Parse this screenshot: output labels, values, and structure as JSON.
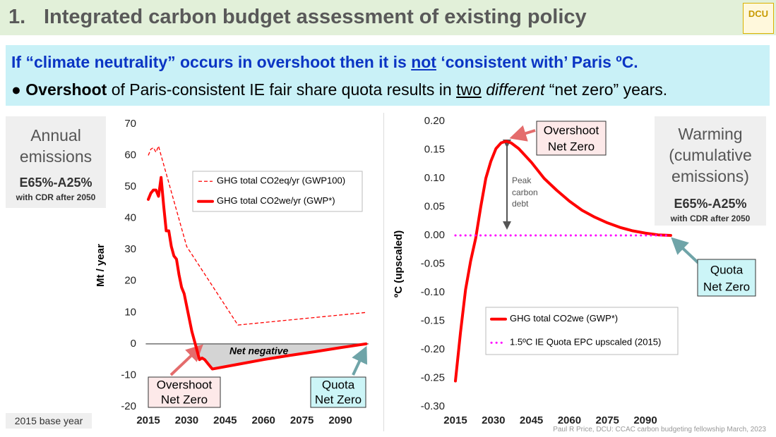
{
  "header": {
    "number": "1.",
    "title": "Integrated carbon budget assessment of existing policy",
    "logo": "DCU"
  },
  "banner": {
    "line1": [
      "If “climate neutrality” occurs in overshoot then it is ",
      "not",
      " ‘consistent with’ Paris ºC."
    ],
    "line2": [
      "● ",
      "Overshoot",
      " of Paris-consistent IE fair share quota results in ",
      "two",
      " different",
      " “net zero” years."
    ]
  },
  "left_box": {
    "title": "Annual emissions",
    "scenario": "E65%-A25%",
    "note": "with CDR after 2050"
  },
  "right_box": {
    "title": "Warming (cumulative emissions)",
    "scenario": "E65%-A25%",
    "note": "with CDR after 2050"
  },
  "footer": {
    "base_year": "2015 base year",
    "credit": "Paul R Price, DCU: CCAC carbon budgeting fellowship March, 2023"
  },
  "chart_data": [
    {
      "type": "line",
      "ylabel": "Mt / year",
      "xlim": [
        2014,
        2101
      ],
      "xticks": [
        2015,
        2030,
        2045,
        2060,
        2075,
        2090
      ],
      "ylim": [
        -20,
        70
      ],
      "yticks": [
        -20,
        -10,
        0,
        10,
        20,
        30,
        40,
        50,
        60,
        70
      ],
      "zero_line": true,
      "legend": "upper right",
      "series": [
        {
          "name": "GHG total CO2eq/yr (GWP100)",
          "color": "#ff0000",
          "line_style": "dashed",
          "x": [
            2015,
            2016,
            2017,
            2018,
            2019,
            2020,
            2030,
            2050,
            2100
          ],
          "values": [
            60,
            62,
            62.5,
            61,
            63,
            60,
            31,
            6,
            10
          ]
        },
        {
          "name": "GHG total CO2we/yr (GWP*)",
          "color": "#ff0000",
          "line_style": "solid",
          "x": [
            2015,
            2016,
            2017,
            2018,
            2019,
            2020,
            2021,
            2022,
            2023,
            2024,
            2025,
            2026,
            2027,
            2028,
            2029,
            2030,
            2031,
            2032,
            2033,
            2034,
            2035,
            2036,
            2037,
            2038,
            2039,
            2040,
            2050,
            2060,
            2070,
            2080,
            2090,
            2100
          ],
          "values": [
            46,
            48,
            49,
            49,
            47,
            53,
            44,
            36,
            36,
            31,
            28,
            27,
            22,
            18,
            16,
            12,
            8,
            4,
            1,
            -2,
            -5,
            -4.5,
            -5,
            -6,
            -7,
            -8,
            -6.5,
            -5,
            -3.7,
            -2.5,
            -1.2,
            0
          ]
        }
      ],
      "annotations": {
        "net_negative": "Net negative",
        "overshoot": [
          "Overshoot",
          "Net Zero"
        ],
        "quota": [
          "Quota",
          "Net Zero"
        ]
      }
    },
    {
      "type": "line",
      "ylabel": "ºC (upscaled)",
      "xlim": [
        2014,
        2101
      ],
      "xticks": [
        2015,
        2030,
        2045,
        2060,
        2075,
        2090
      ],
      "ylim": [
        -0.3,
        0.2
      ],
      "yticks": [
        {
          "value": -0.3,
          "label": "-0.30"
        },
        -0.25,
        {
          "value": -0.2,
          "label": "-0.20"
        },
        -0.15,
        {
          "value": -0.1,
          "label": "-0.10"
        },
        -0.05,
        {
          "value": 0,
          "label": "0.00"
        },
        0.05,
        {
          "value": 0.1,
          "label": "0.10"
        },
        0.15,
        {
          "value": 0.2,
          "label": "0.20"
        }
      ],
      "zero_line": false,
      "legend": "lower right",
      "series": [
        {
          "name": "GHG total CO2we (GWP*)",
          "color": "#ff0000",
          "line_style": "solid",
          "x": [
            2015,
            2017,
            2019,
            2021,
            2023,
            2025,
            2027,
            2029,
            2031,
            2033,
            2035,
            2037,
            2040,
            2045,
            2050,
            2055,
            2060,
            2065,
            2070,
            2075,
            2080,
            2085,
            2090,
            2095,
            2100
          ],
          "values": [
            -0.255,
            -0.17,
            -0.095,
            -0.045,
            -0.005,
            0.05,
            0.1,
            0.13,
            0.152,
            0.162,
            0.165,
            0.162,
            0.152,
            0.128,
            0.1,
            0.079,
            0.06,
            0.044,
            0.032,
            0.022,
            0.014,
            0.008,
            0.004,
            0.001,
            0
          ]
        },
        {
          "name": "1.5ºC IE Quota EPC upscaled (2015)",
          "color": "#ff00ff",
          "line_style": "dotted",
          "x": [
            2015,
            2100
          ],
          "values": [
            0,
            0
          ]
        }
      ],
      "annotations": {
        "overshoot": [
          "Overshoot",
          "Net Zero"
        ],
        "peak": [
          "Peak",
          "carbon",
          "debt"
        ],
        "quota": [
          "Quota",
          "Net Zero"
        ]
      }
    }
  ]
}
